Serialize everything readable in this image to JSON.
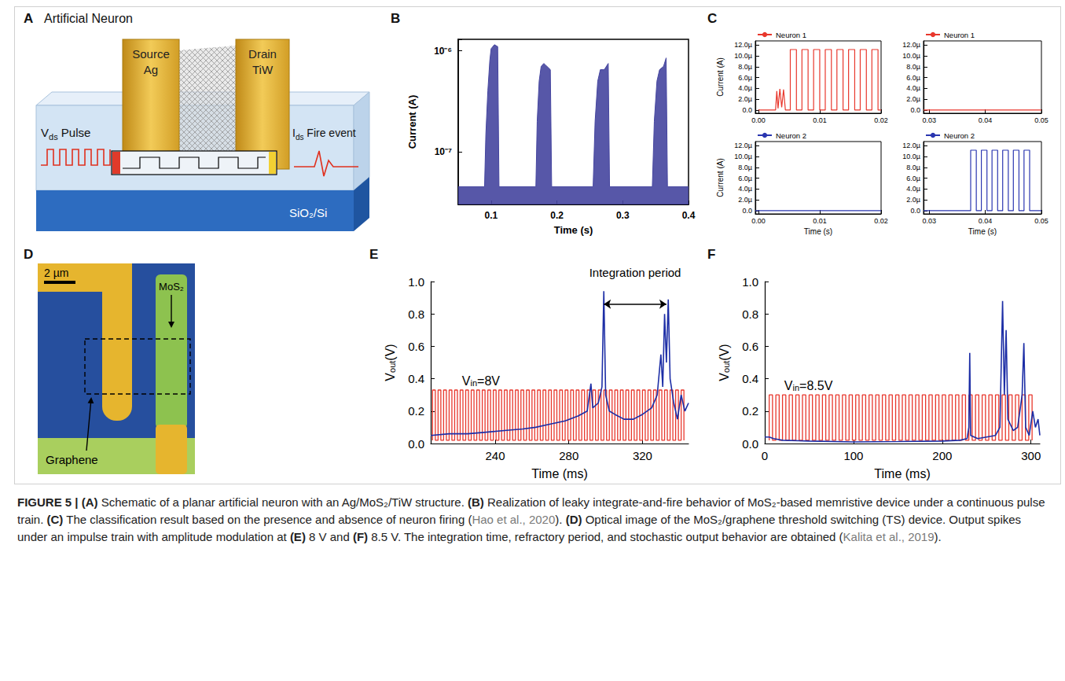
{
  "chart_data": [
    {
      "panel": "B",
      "type": "area",
      "xlabel": "Time (s)",
      "ylabel": "Current (A)",
      "log": "y",
      "xlim": [
        0.05,
        0.4
      ],
      "xticks": [
        0.1,
        0.2,
        0.3,
        0.4
      ],
      "ylim": [
        3e-08,
        1.3e-06
      ],
      "yticks": [
        {
          "value": 1e-07,
          "label": "10⁻⁷"
        },
        {
          "value": 1e-06,
          "label": "10⁻⁶"
        }
      ],
      "series": [
        {
          "color": "#45459f",
          "x": [
            0.05,
            0.09,
            0.092,
            0.095,
            0.098,
            0.1,
            0.105,
            0.11,
            0.112,
            0.168,
            0.17,
            0.173,
            0.176,
            0.18,
            0.185,
            0.19,
            0.192,
            0.255,
            0.258,
            0.262,
            0.266,
            0.272,
            0.278,
            0.28,
            0.345,
            0.348,
            0.352,
            0.356,
            0.362,
            0.366,
            0.368,
            0.4
          ],
          "values": [
            4.5e-08,
            4.5e-08,
            1.5e-07,
            4e-07,
            8e-07,
            1.05e-06,
            1.15e-06,
            1.1e-06,
            4.5e-08,
            4.5e-08,
            2e-07,
            5e-07,
            7e-07,
            7.5e-07,
            7e-07,
            6.5e-07,
            4.5e-08,
            4.5e-08,
            2e-07,
            5e-07,
            6.5e-07,
            6.5e-07,
            7.5e-07,
            4.5e-08,
            4.5e-08,
            2e-07,
            5e-07,
            6.5e-07,
            7e-07,
            8.5e-07,
            4.5e-08,
            4.5e-08
          ]
        }
      ]
    },
    {
      "panel": "C",
      "type": "line",
      "ylabel": "Current (A)",
      "legend": "top left",
      "xlim": [
        -0.0005,
        0.02
      ],
      "xticks": [
        {
          "value": 0,
          "label": "0.00"
        },
        0.01,
        0.02
      ],
      "ylim": [
        -6e-07,
        1.28e-05
      ],
      "yticks": [
        {
          "value": 0,
          "label": "0.0"
        },
        {
          "value": 2e-06,
          "label": "2.0µ"
        },
        {
          "value": 4e-06,
          "label": "4.0µ"
        },
        {
          "value": 6e-06,
          "label": "6.0µ"
        },
        {
          "value": 8e-06,
          "label": "8.0µ"
        },
        {
          "value": 1e-05,
          "label": "10.0µ"
        },
        {
          "value": 1.2e-05,
          "label": "12.0µ"
        }
      ],
      "series": [
        {
          "name": "Neuron 1",
          "color": "#e8372c",
          "x": [
            0,
            0.0028,
            0.003,
            0.0032,
            0.0035,
            0.0038,
            0.0041,
            0.0044,
            0.0052,
            0.0052,
            0.0062,
            0.0062,
            0.0071,
            0.0071,
            0.0081,
            0.0081,
            0.009,
            0.009,
            0.01,
            0.01,
            0.0109,
            0.0109,
            0.0119,
            0.0119,
            0.0128,
            0.0128,
            0.0138,
            0.0138,
            0.0147,
            0.0147,
            0.0157,
            0.0157,
            0.0166,
            0.0166,
            0.0176,
            0.0176,
            0.0185,
            0.0185,
            0.0195,
            0.0195,
            0.02
          ],
          "values": [
            0,
            0,
            3.5e-06,
            3e-07,
            3.9e-06,
            5e-07,
            3.8e-06,
            0,
            0,
            1.12e-05,
            1.12e-05,
            0,
            0,
            1.12e-05,
            1.12e-05,
            0,
            0,
            1.12e-05,
            1.12e-05,
            0,
            0,
            1.12e-05,
            1.12e-05,
            0,
            0,
            1.12e-05,
            1.12e-05,
            0,
            0,
            1.12e-05,
            1.12e-05,
            0,
            0,
            1.12e-05,
            1.12e-05,
            0,
            0,
            1.12e-05,
            1.12e-05,
            0,
            0
          ]
        }
      ]
    },
    {
      "panel": "C",
      "type": "line",
      "legend": "top left",
      "xlim": [
        0.029,
        0.05
      ],
      "xticks": [
        0.03,
        0.04,
        0.05
      ],
      "ylim": [
        -6e-07,
        1.28e-05
      ],
      "yticks": [
        {
          "value": 0,
          "label": "0.0"
        },
        {
          "value": 2e-06,
          "label": "2.0µ"
        },
        {
          "value": 4e-06,
          "label": "4.0µ"
        },
        {
          "value": 6e-06,
          "label": "6.0µ"
        },
        {
          "value": 8e-06,
          "label": "8.0µ"
        },
        {
          "value": 1e-05,
          "label": "10.0µ"
        },
        {
          "value": 1.2e-05,
          "label": "12.0µ"
        }
      ],
      "series": [
        {
          "name": "Neuron 1",
          "color": "#e8372c",
          "x": [
            0.029,
            0.05
          ],
          "values": [
            0,
            0
          ]
        }
      ]
    },
    {
      "panel": "C",
      "type": "line",
      "xlabel": "Time (s)",
      "ylabel": "Current (A)",
      "legend": "top left",
      "xlim": [
        -0.0005,
        0.02
      ],
      "xticks": [
        {
          "value": 0,
          "label": "0.00"
        },
        0.01,
        0.02
      ],
      "ylim": [
        -6e-07,
        1.28e-05
      ],
      "yticks": [
        {
          "value": 0,
          "label": "0.0"
        },
        {
          "value": 2e-06,
          "label": "2.0µ"
        },
        {
          "value": 4e-06,
          "label": "4.0µ"
        },
        {
          "value": 6e-06,
          "label": "6.0µ"
        },
        {
          "value": 8e-06,
          "label": "8.0µ"
        },
        {
          "value": 1e-05,
          "label": "10.0µ"
        },
        {
          "value": 1.2e-05,
          "label": "12.0µ"
        }
      ],
      "series": [
        {
          "name": "Neuron 2",
          "color": "#2a36b0",
          "x": [
            -0.0005,
            0.02
          ],
          "values": [
            0,
            0
          ]
        }
      ]
    },
    {
      "panel": "C",
      "type": "line",
      "xlabel": "Time (s)",
      "legend": "top left",
      "xlim": [
        0.029,
        0.05
      ],
      "xticks": [
        0.03,
        0.04,
        0.05
      ],
      "ylim": [
        -6e-07,
        1.28e-05
      ],
      "yticks": [
        {
          "value": 0,
          "label": "0.0"
        },
        {
          "value": 2e-06,
          "label": "2.0µ"
        },
        {
          "value": 4e-06,
          "label": "4.0µ"
        },
        {
          "value": 6e-06,
          "label": "6.0µ"
        },
        {
          "value": 8e-06,
          "label": "8.0µ"
        },
        {
          "value": 1e-05,
          "label": "10.0µ"
        },
        {
          "value": 1.2e-05,
          "label": "12.0µ"
        }
      ],
      "series": [
        {
          "name": "Neuron 2",
          "color": "#2a36b0",
          "x": [
            0.029,
            0.0374,
            0.0374,
            0.0384,
            0.0384,
            0.0393,
            0.0393,
            0.0403,
            0.0403,
            0.0412,
            0.0412,
            0.0422,
            0.0422,
            0.0431,
            0.0431,
            0.0441,
            0.0441,
            0.045,
            0.045,
            0.046,
            0.046,
            0.0469,
            0.0469,
            0.0479,
            0.0479,
            0.05
          ],
          "values": [
            0,
            0,
            1.12e-05,
            1.12e-05,
            0,
            0,
            1.12e-05,
            1.12e-05,
            0,
            0,
            1.12e-05,
            1.12e-05,
            0,
            0,
            1.12e-05,
            1.12e-05,
            0,
            0,
            1.12e-05,
            1.12e-05,
            0,
            0,
            1.12e-05,
            1.12e-05,
            0,
            0
          ]
        }
      ]
    },
    {
      "panel": "E",
      "type": "line",
      "xlabel": "Time (ms)",
      "ylabel": {
        "main": "V",
        "sub": "out",
        "rest": "(V)"
      },
      "xlim": [
        205,
        345
      ],
      "xticks": [
        240,
        280,
        320
      ],
      "ylim": [
        0,
        1
      ],
      "yticks": [
        {
          "value": 0,
          "label": "0.0"
        },
        0.2,
        0.4,
        0.6,
        0.8,
        {
          "value": 1,
          "label": "1.0"
        }
      ],
      "series": [
        {
          "color": "#e8372c",
          "pulse_starts": [
            206,
            209,
            212,
            215,
            218,
            221,
            224,
            227,
            230,
            233,
            236,
            239,
            242,
            245,
            248,
            251,
            254,
            257,
            260,
            263,
            266,
            269,
            272,
            275,
            278,
            281,
            284,
            287,
            290,
            293,
            296,
            299,
            302,
            305,
            308,
            311,
            314,
            317,
            320,
            323,
            326,
            329,
            332,
            335,
            338,
            341
          ],
          "pulse_width": 1.5,
          "high": 0.33,
          "low": 0.02
        },
        {
          "color": "#1d2ea6",
          "x": [
            205,
            215,
            225,
            235,
            245,
            255,
            262,
            270,
            278,
            285,
            290,
            292,
            293,
            296,
            298,
            299,
            300,
            302,
            305,
            310,
            315,
            320,
            325,
            328,
            330,
            331,
            332,
            333,
            334,
            335,
            337,
            339,
            341,
            343,
            345
          ],
          "values": [
            0.05,
            0.06,
            0.06,
            0.07,
            0.08,
            0.09,
            0.1,
            0.12,
            0.14,
            0.17,
            0.2,
            0.37,
            0.22,
            0.25,
            0.35,
            0.94,
            0.3,
            0.2,
            0.18,
            0.15,
            0.15,
            0.18,
            0.22,
            0.3,
            0.55,
            0.35,
            0.8,
            0.5,
            0.89,
            0.4,
            0.25,
            0.15,
            0.3,
            0.2,
            0.25
          ]
        }
      ],
      "annotations": [
        {
          "text": {
            "main": "V",
            "sub": "in",
            "rest": "=8V"
          },
          "x": 222,
          "y": 0.345
        }
      ],
      "arrow": {
        "text": "Integration period",
        "x": [
          299,
          333
        ],
        "y": 0.86
      }
    },
    {
      "panel": "F",
      "type": "line",
      "xlabel": "Time (ms)",
      "ylabel": {
        "main": "V",
        "sub": "out",
        "rest": "(V)"
      },
      "xlim": [
        0,
        310
      ],
      "xticks": [
        0,
        100,
        200,
        300
      ],
      "ylim": [
        0,
        1
      ],
      "yticks": [
        {
          "value": 0,
          "label": "0.0"
        },
        0.2,
        0.4,
        0.6,
        0.8,
        {
          "value": 1,
          "label": "1.0"
        }
      ],
      "series": [
        {
          "color": "#e8372c",
          "pulse_starts": [
            5,
            12.5,
            20,
            27.5,
            35,
            42.5,
            50,
            57.5,
            65,
            72.5,
            80,
            87.5,
            95,
            102.5,
            110,
            117.5,
            125,
            132.5,
            140,
            147.5,
            155,
            162.5,
            170,
            177.5,
            185,
            192.5,
            200,
            207.5,
            215,
            222.5,
            230,
            237.5,
            245,
            252.5,
            260,
            267.5,
            275,
            282.5,
            290,
            297.5
          ],
          "pulse_width": 3.75,
          "high": 0.3,
          "low": 0.02
        },
        {
          "color": "#1d2ea6",
          "x": [
            0,
            5,
            10,
            20,
            50,
            100,
            150,
            200,
            220,
            228,
            230,
            231,
            232,
            240,
            250,
            260,
            265,
            268,
            270,
            272,
            274,
            280,
            285,
            290,
            292,
            294,
            298,
            302,
            305,
            308,
            310
          ],
          "values": [
            0.04,
            0.04,
            0.03,
            0.02,
            0.015,
            0.01,
            0.012,
            0.015,
            0.02,
            0.03,
            0.1,
            0.56,
            0.05,
            0.03,
            0.04,
            0.05,
            0.1,
            0.88,
            0.3,
            0.7,
            0.15,
            0.08,
            0.1,
            0.3,
            0.62,
            0.1,
            0.05,
            0.2,
            0.1,
            0.15,
            0.05
          ]
        }
      ],
      "annotations": [
        {
          "text": {
            "main": "V",
            "sub": "in",
            "rest": "=8.5V"
          },
          "x": 22,
          "y": 0.32
        }
      ]
    }
  ],
  "diagrams": {
    "A": {
      "title": "Artificial Neuron",
      "source": [
        "Source",
        "Ag"
      ],
      "drain": [
        "Drain",
        "TiW"
      ],
      "input": {
        "main": "V",
        "sub": "ds",
        "rest": " Pulse"
      },
      "output": {
        "main": "I",
        "sub": "ds",
        "rest": " Fire event"
      },
      "substrate": "SiO₂/Si"
    },
    "D": {
      "scale_bar": "2 µm",
      "mos2": "MoS₂",
      "graphene": "Graphene"
    }
  },
  "caption": [
    {
      "text": "FIGURE 5 | ",
      "bold": true
    },
    {
      "text": "(A)",
      "bold": true
    },
    {
      "text": " Schematic of a planar artificial neuron with an Ag/MoS₂/TiW structure. "
    },
    {
      "text": "(B)",
      "bold": true
    },
    {
      "text": " Realization of leaky integrate-and-fire behavior of MoS₂-based memristive device under a continuous pulse train. "
    },
    {
      "text": "(C)",
      "bold": true
    },
    {
      "text": " The classification result based on the presence and absence of neuron firing ("
    },
    {
      "text": "Hao et al., 2020",
      "cite": true
    },
    {
      "text": "). "
    },
    {
      "text": "(D)",
      "bold": true
    },
    {
      "text": " Optical image of the MoS₂/graphene threshold switching (TS) device. Output spikes under an impulse train with amplitude modulation at "
    },
    {
      "text": "(E)",
      "bold": true
    },
    {
      "text": " 8 V and "
    },
    {
      "text": "(F)",
      "bold": true
    },
    {
      "text": " 8.5 V. The integration time, refractory period, and stochastic output behavior are obtained ("
    },
    {
      "text": "Kalita et al., 2019",
      "cite": true
    },
    {
      "text": ")."
    }
  ]
}
